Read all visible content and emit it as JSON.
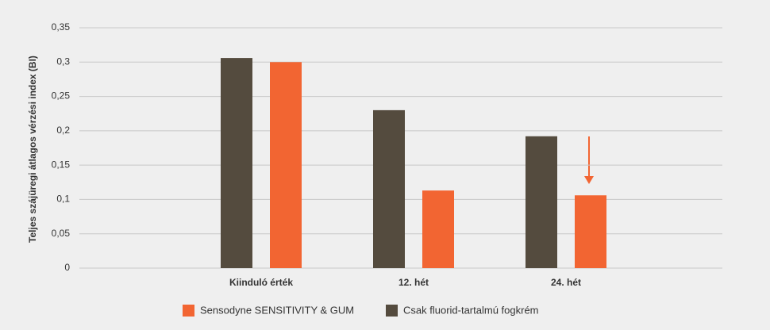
{
  "chart_data": {
    "type": "bar",
    "y_label": "Teljes szájüregi átlagos vérzési index (BI)",
    "categories": [
      "Kiinduló érték",
      "12. hét",
      "24. hét"
    ],
    "series": [
      {
        "name": "Sensodyne SENSITIVITY & GUM",
        "color": "#f26532",
        "values": [
          0.3,
          0.113,
          0.106
        ]
      },
      {
        "name": "Csak fluorid-tartalmú fogkrém",
        "color": "#544b3e",
        "values": [
          0.306,
          0.23,
          0.192
        ]
      }
    ],
    "ylim": [
      0,
      0.35
    ],
    "yticks": [
      0,
      {
        "value": 0.05,
        "label": "0,05"
      },
      {
        "value": 0.1,
        "label": "0,1"
      },
      {
        "value": 0.15,
        "label": "0,15"
      },
      {
        "value": 0.2,
        "label": "0,2"
      },
      {
        "value": 0.25,
        "label": "0,25"
      },
      {
        "value": 0.3,
        "label": "0,3"
      },
      {
        "value": 0.35,
        "label": "0,35"
      }
    ],
    "grid": true
  }
}
